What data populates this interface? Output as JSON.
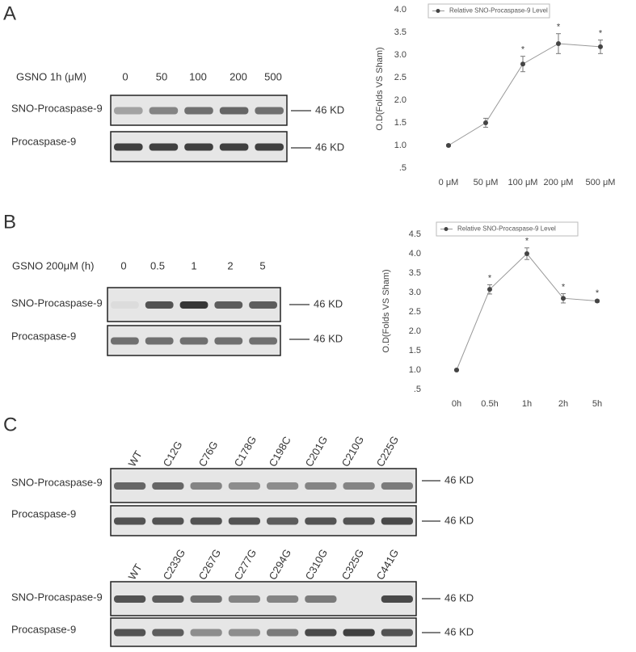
{
  "panel_labels": [
    "A",
    "B",
    "C"
  ],
  "blots": [
    {
      "condition": "GSNO 1h (μM)",
      "lanes": [
        "0",
        "50",
        "100",
        "200",
        "500"
      ],
      "rows": [
        {
          "name": "SNO-Procaspase-9",
          "size": "46 KD"
        },
        {
          "name": "Procaspase-9",
          "size": "46 KD"
        }
      ]
    },
    {
      "condition": "GSNO 200μM (h)",
      "lanes": [
        "0",
        "0.5",
        "1",
        "2",
        "5"
      ],
      "rows": [
        {
          "name": "SNO-Procaspase-9",
          "size": "46 KD"
        },
        {
          "name": "Procaspase-9",
          "size": "46 KD"
        }
      ]
    },
    {
      "lanes": [
        "WT",
        "C12G",
        "C76G",
        "C178G",
        "C198C",
        "C201G",
        "C210G",
        "C225G"
      ],
      "rows": [
        {
          "name": "SNO-Procaspase-9",
          "size": "46 KD"
        },
        {
          "name": "Procaspase-9",
          "size": "46 KD"
        }
      ]
    },
    {
      "lanes": [
        "WT",
        "C233G",
        "C267G",
        "C277G",
        "C294G",
        "C310G",
        "C325G",
        "C441G"
      ],
      "rows": [
        {
          "name": "SNO-Procaspase-9",
          "size": "46 KD"
        },
        {
          "name": "Procaspase-9",
          "size": "46 KD"
        }
      ]
    }
  ],
  "chart_data": [
    {
      "type": "line",
      "y_label": "O.D(Folds VS Sham)",
      "categories": [
        "0 μM",
        "50 μM",
        "100 μM",
        "200 μM",
        "500 μM"
      ],
      "series": [
        {
          "name": "Relative SNO-Procaspase-9 Level",
          "color": "#444444",
          "values": [
            1.0,
            1.5,
            2.8,
            3.25,
            3.18
          ],
          "errors": [
            0.02,
            0.1,
            0.17,
            0.22,
            0.15
          ]
        }
      ],
      "significance": [
        null,
        null,
        "*",
        "*",
        "*"
      ],
      "ylim": [
        0.5,
        4.0
      ],
      "yticks": [
        {
          "value": 0.5,
          "label": ".5"
        },
        {
          "value": 1.0,
          "label": "1.0"
        },
        {
          "value": 1.5,
          "label": "1.5"
        },
        {
          "value": 2.0,
          "label": "2.0"
        },
        {
          "value": 2.5,
          "label": "2.5"
        },
        {
          "value": 3.0,
          "label": "3.0"
        },
        {
          "value": 3.5,
          "label": "3.5"
        },
        {
          "value": 4.0,
          "label": "4.0"
        }
      ]
    },
    {
      "type": "line",
      "y_label": "O.D(Folds VS Sham)",
      "categories": [
        "0h",
        "0.5h",
        "1h",
        "2h",
        "5h"
      ],
      "series": [
        {
          "name": "Relative SNO-Procaspase-9 Level",
          "color": "#444444",
          "values": [
            1.0,
            3.08,
            4.0,
            2.85,
            2.78
          ],
          "errors": [
            0.02,
            0.12,
            0.15,
            0.12,
            0.03
          ]
        }
      ],
      "significance": [
        null,
        "*",
        "*",
        "*",
        "*"
      ],
      "ylim": [
        0.5,
        4.5
      ],
      "yticks": [
        {
          "value": 0.5,
          "label": ".5"
        },
        {
          "value": 1.0,
          "label": "1.0"
        },
        {
          "value": 1.5,
          "label": "1.5"
        },
        {
          "value": 2.0,
          "label": "2.0"
        },
        {
          "value": 2.5,
          "label": "2.5"
        },
        {
          "value": 3.0,
          "label": "3.0"
        },
        {
          "value": 3.5,
          "label": "3.5"
        },
        {
          "value": 4.0,
          "label": "4.0"
        },
        {
          "value": 4.5,
          "label": "4.5"
        }
      ]
    }
  ]
}
